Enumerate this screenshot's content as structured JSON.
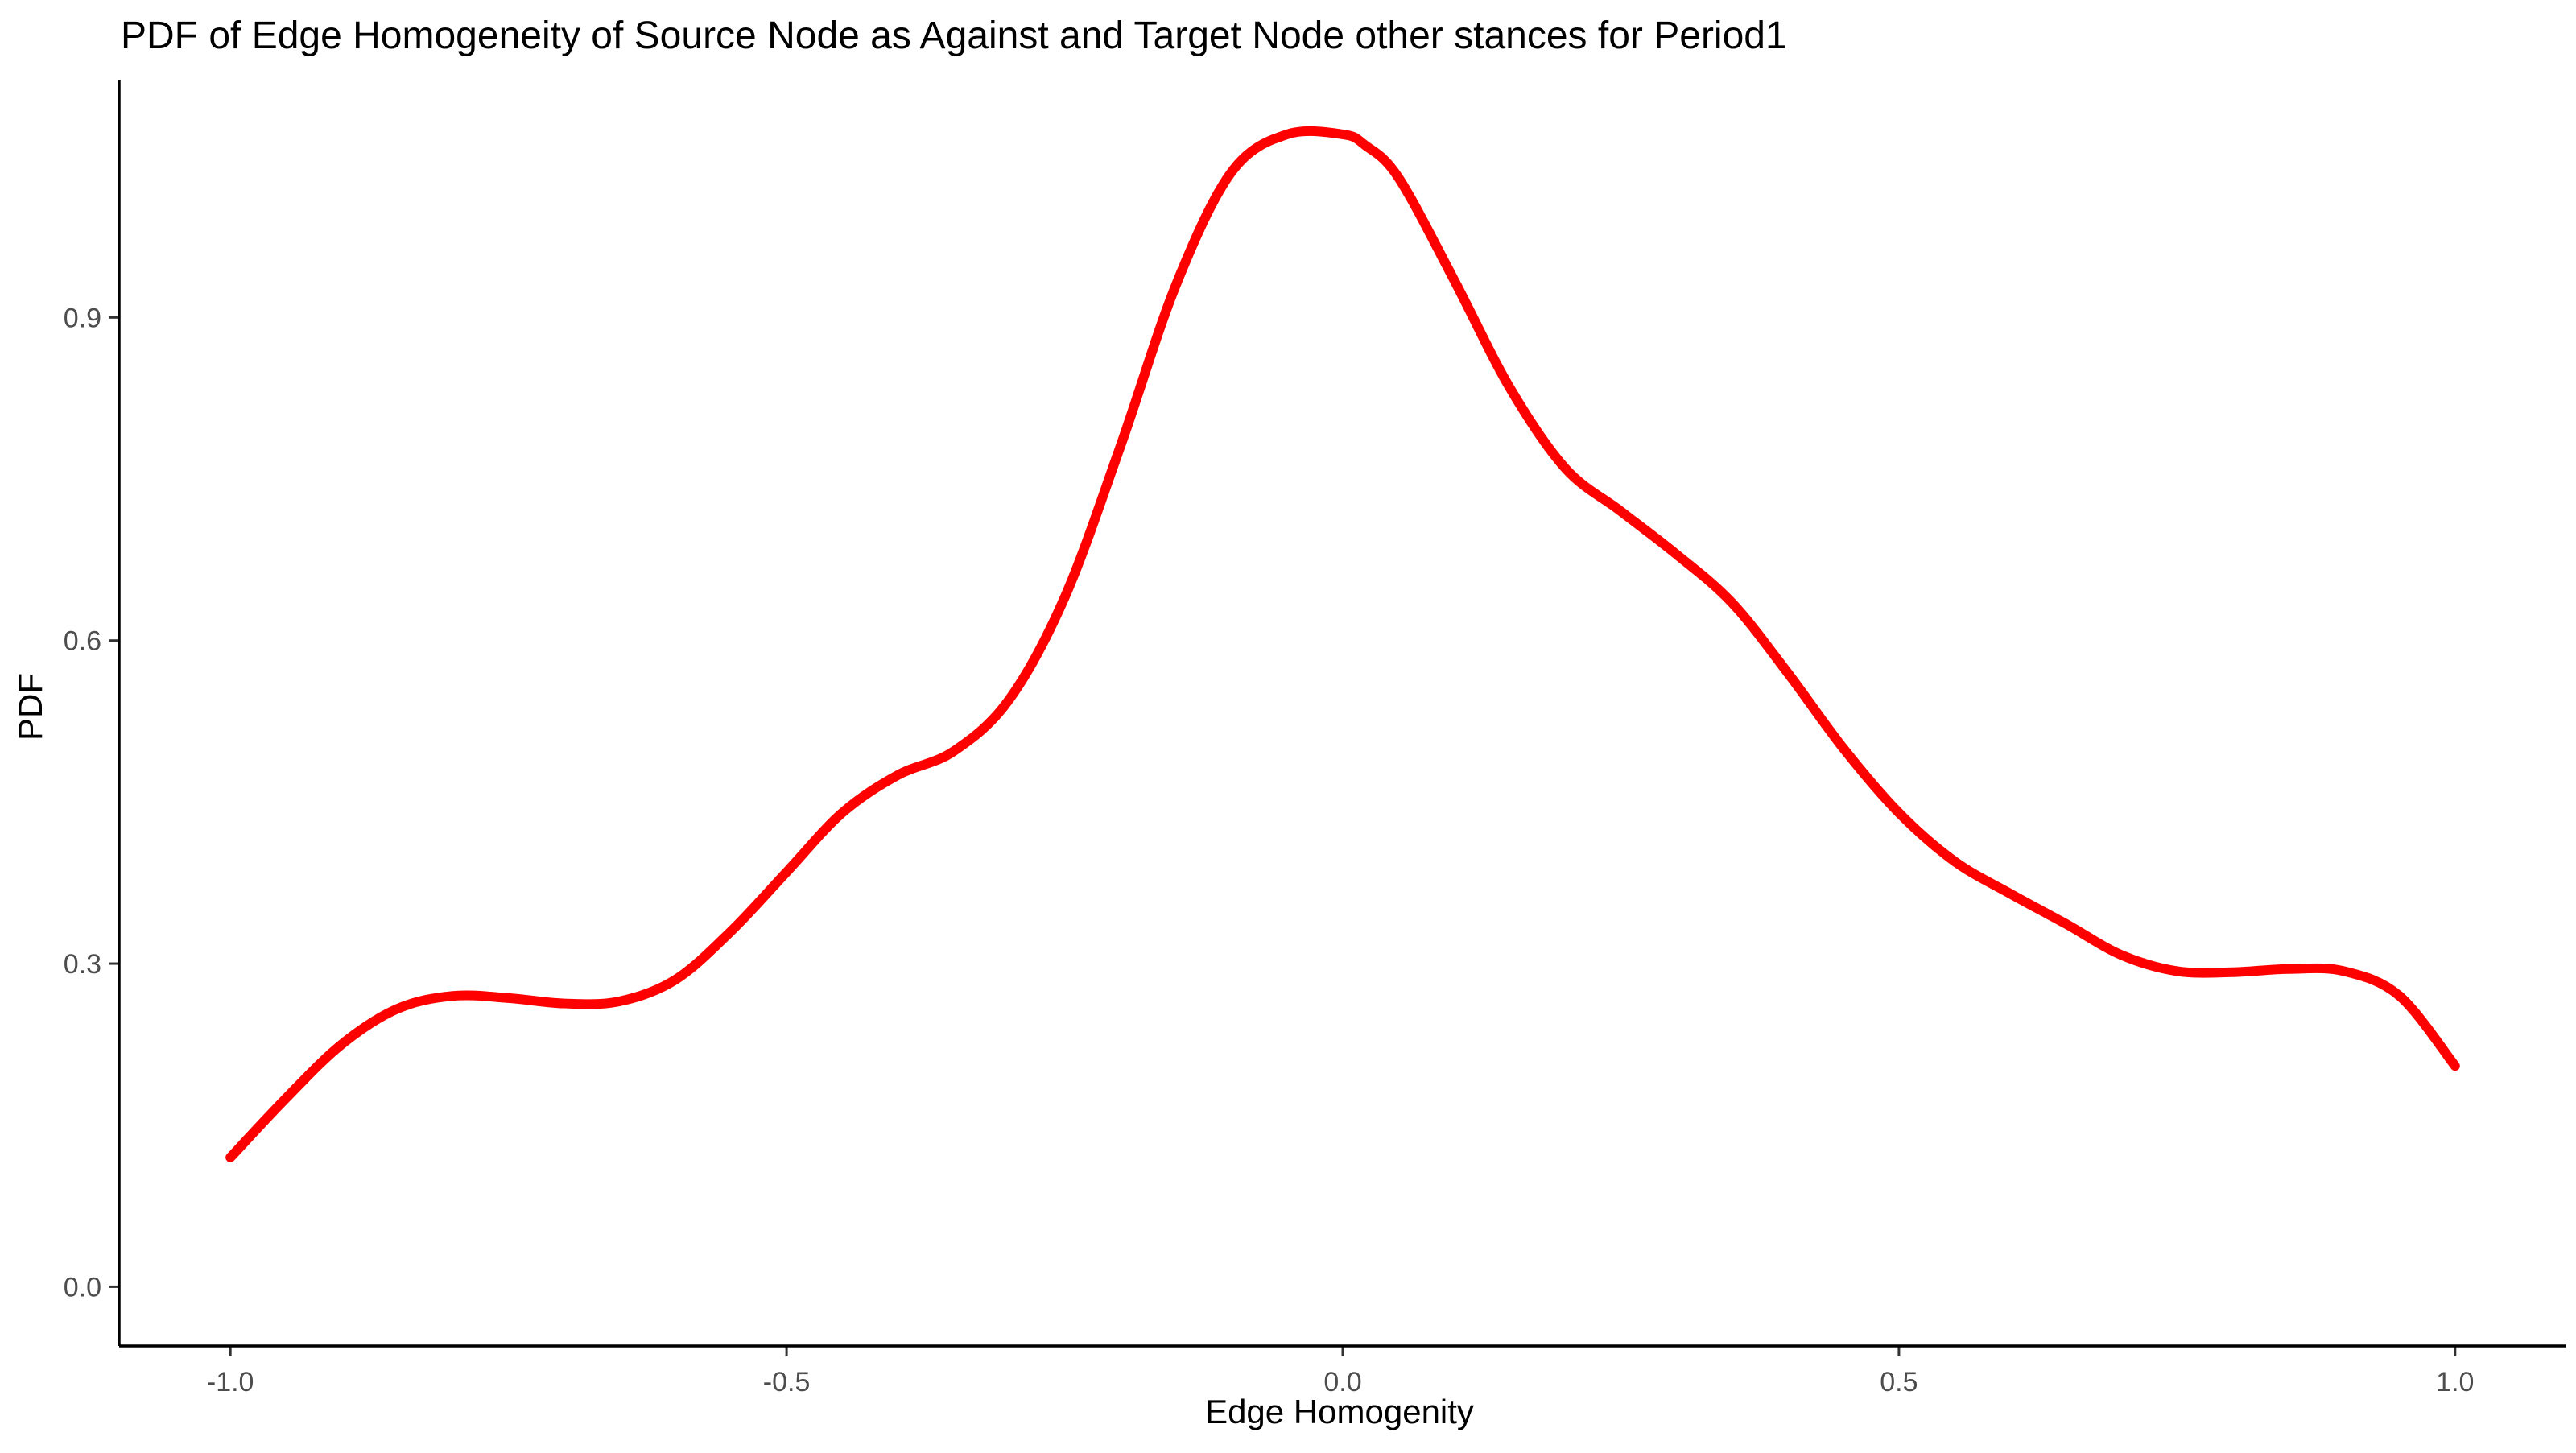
{
  "chart_data": {
    "type": "line",
    "title": "PDF of Edge Homogeneity of Source Node as Against and Target Node other stances for Period1",
    "xlabel": "Edge Homogenity",
    "ylabel": "PDF",
    "xlim": [
      -1.1,
      1.1
    ],
    "ylim": [
      -0.055,
      1.12
    ],
    "x_ticks": [
      -1.0,
      -0.5,
      0.0,
      0.5,
      1.0
    ],
    "x_tick_labels": [
      "-1.0",
      "-0.5",
      "0.0",
      "0.5",
      "1.0"
    ],
    "y_ticks": [
      0.0,
      0.3,
      0.6,
      0.9
    ],
    "y_tick_labels": [
      "0.0",
      "0.3",
      "0.6",
      "0.9"
    ],
    "grid": false,
    "legend": "none",
    "series": [
      {
        "color": "#ff0000",
        "x": [
          -1.0,
          -0.95,
          -0.9,
          -0.85,
          -0.8,
          -0.75,
          -0.7,
          -0.65,
          -0.6,
          -0.55,
          -0.5,
          -0.45,
          -0.4,
          -0.35,
          -0.3,
          -0.25,
          -0.2,
          -0.15,
          -0.1,
          -0.05,
          0.0,
          0.02,
          0.05,
          0.1,
          0.15,
          0.2,
          0.25,
          0.3,
          0.35,
          0.4,
          0.45,
          0.5,
          0.55,
          0.6,
          0.65,
          0.7,
          0.75,
          0.8,
          0.85,
          0.9,
          0.95,
          1.0
        ],
        "y": [
          0.12,
          0.175,
          0.225,
          0.258,
          0.27,
          0.268,
          0.263,
          0.265,
          0.285,
          0.33,
          0.385,
          0.44,
          0.475,
          0.497,
          0.545,
          0.64,
          0.78,
          0.93,
          1.035,
          1.07,
          1.07,
          1.06,
          1.03,
          0.935,
          0.835,
          0.76,
          0.72,
          0.68,
          0.635,
          0.57,
          0.5,
          0.44,
          0.395,
          0.365,
          0.337,
          0.308,
          0.293,
          0.292,
          0.295,
          0.293,
          0.27,
          0.205
        ]
      }
    ]
  }
}
